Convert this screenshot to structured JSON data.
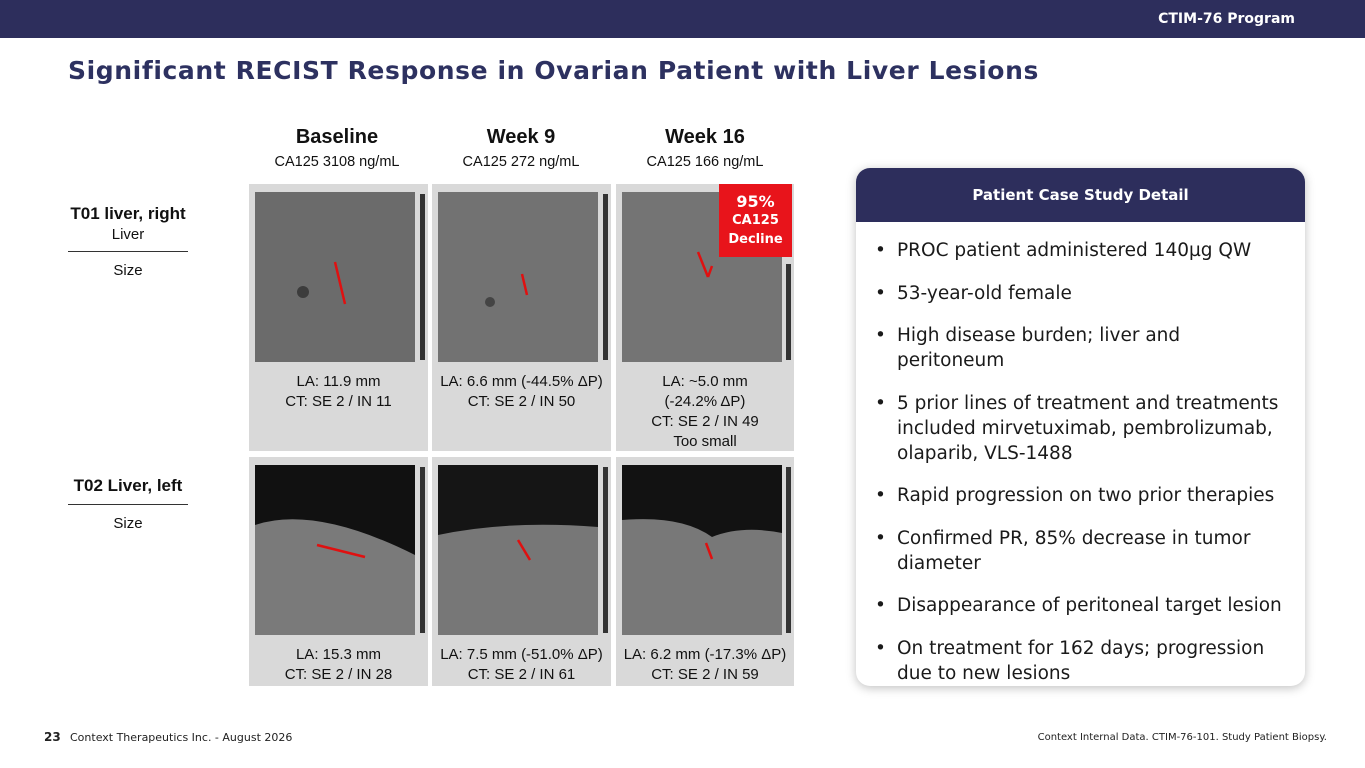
{
  "header": {
    "program": "CTIM-76 Program"
  },
  "title": "Significant RECIST Response in Ovarian Patient with Liver Lesions",
  "columns": [
    {
      "heading": "Baseline",
      "marker": "CA125 3108 ng/mL"
    },
    {
      "heading": "Week 9",
      "marker": "CA125 272 ng/mL"
    },
    {
      "heading": "Week 16",
      "marker": "CA125 166 ng/mL"
    }
  ],
  "badge": [
    "95%",
    "CA125",
    "Decline"
  ],
  "lesions": [
    {
      "name": "T01 liver, right",
      "organ": "Liver",
      "measure": "Size",
      "cells": [
        [
          "LA: 11.9 mm",
          "CT: SE 2 / IN 11"
        ],
        [
          "LA: 6.6 mm (-44.5% ΔP)",
          "CT: SE 2 / IN 50"
        ],
        [
          "LA: ~5.0 mm",
          "(-24.2% ΔP)",
          "CT: SE 2 / IN 49",
          "Too small"
        ]
      ]
    },
    {
      "name": "T02 Liver, left",
      "measure": "Size",
      "cells": [
        [
          "LA: 15.3 mm",
          "CT: SE 2 / IN 28"
        ],
        [
          "LA: 7.5 mm (-51.0% ΔP)",
          "CT: SE 2 / IN 61"
        ],
        [
          "LA: 6.2 mm (-17.3% ΔP)",
          "CT: SE 2 / IN 59"
        ]
      ]
    }
  ],
  "case_study": {
    "title": "Patient Case Study Detail",
    "bullets": [
      "PROC patient administered 140µg QW",
      "53-year-old female",
      "High disease burden; liver and peritoneum",
      "5 prior lines of treatment and treatments included mirvetuximab, pembrolizumab, olaparib, VLS-1488",
      "Rapid progression on two prior therapies",
      "Confirmed PR, 85% decrease in tumor diameter",
      "Disappearance of peritoneal target lesion",
      "On treatment for 162 days; progression due to new lesions"
    ]
  },
  "footer": {
    "page": "23",
    "company": "Context Therapeutics Inc. - August 2026",
    "source": "Context Internal Data. CTIM-76-101. Study Patient Biopsy."
  }
}
